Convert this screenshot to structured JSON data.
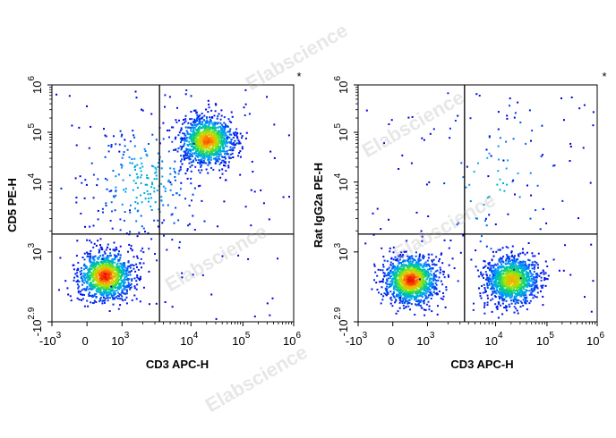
{
  "watermark": "Elabscience",
  "chart_data": [
    {
      "type": "scatter",
      "subtype": "flow-cytometry-density-dot-plot",
      "marker": "*",
      "xlabel": "CD3 APC-H",
      "ylabel": "CD5 PE-H",
      "x_scale": "biexponential",
      "y_scale": "biexponential",
      "xlim": [
        -1000,
        1000000
      ],
      "ylim": [
        -794,
        1000000
      ],
      "x_ticks": [
        {
          "base": "-10",
          "exp": "3",
          "value": -1000
        },
        {
          "base": "0",
          "exp": "",
          "value": 0
        },
        {
          "base": "10",
          "exp": "3",
          "value": 1000
        },
        {
          "base": "10",
          "exp": "4",
          "value": 10000
        },
        {
          "base": "10",
          "exp": "5",
          "value": 100000
        },
        {
          "base": "10",
          "exp": "6",
          "value": 1000000
        }
      ],
      "y_ticks": [
        {
          "base": "-10",
          "exp": "2.9",
          "value": -794
        },
        {
          "base": "10",
          "exp": "3",
          "value": 1000
        },
        {
          "base": "10",
          "exp": "4",
          "value": 10000
        },
        {
          "base": "10",
          "exp": "5",
          "value": 100000
        },
        {
          "base": "10",
          "exp": "6",
          "value": 1000000
        }
      ],
      "quadrant_gate": {
        "x": 3500,
        "y": 1800
      },
      "populations": [
        {
          "center": [
            500,
            400
          ],
          "spread": "dense",
          "relative_size": 0.45,
          "peak_density": "high"
        },
        {
          "center": [
            20000,
            70000
          ],
          "spread": "dense",
          "relative_size": 0.45,
          "peak_density": "medium-high"
        },
        {
          "center": [
            2000,
            10000
          ],
          "spread": "diffuse",
          "relative_size": 0.1,
          "peak_density": "low"
        }
      ],
      "grid": false,
      "legend": "none"
    },
    {
      "type": "scatter",
      "subtype": "flow-cytometry-density-dot-plot",
      "marker": "*",
      "xlabel": "CD3 APC-H",
      "ylabel": "Rat IgG2a PE-H",
      "x_scale": "biexponential",
      "y_scale": "biexponential",
      "xlim": [
        -1000,
        1000000
      ],
      "ylim": [
        -794,
        1000000
      ],
      "x_ticks": [
        {
          "base": "-10",
          "exp": "3",
          "value": -1000
        },
        {
          "base": "0",
          "exp": "",
          "value": 0
        },
        {
          "base": "10",
          "exp": "3",
          "value": 1000
        },
        {
          "base": "10",
          "exp": "4",
          "value": 10000
        },
        {
          "base": "10",
          "exp": "5",
          "value": 100000
        },
        {
          "base": "10",
          "exp": "6",
          "value": 1000000
        }
      ],
      "y_ticks": [
        {
          "base": "-10",
          "exp": "2.9",
          "value": -794
        },
        {
          "base": "10",
          "exp": "3",
          "value": 1000
        },
        {
          "base": "10",
          "exp": "4",
          "value": 10000
        },
        {
          "base": "10",
          "exp": "5",
          "value": 100000
        },
        {
          "base": "10",
          "exp": "6",
          "value": 1000000
        }
      ],
      "quadrant_gate": {
        "x": 3500,
        "y": 1800
      },
      "populations": [
        {
          "center": [
            500,
            300
          ],
          "spread": "dense",
          "relative_size": 0.5,
          "peak_density": "high"
        },
        {
          "center": [
            20000,
            300
          ],
          "spread": "dense",
          "relative_size": 0.47,
          "peak_density": "medium"
        },
        {
          "center": [
            10000,
            10000
          ],
          "spread": "sparse",
          "relative_size": 0.03,
          "peak_density": "low"
        }
      ],
      "grid": false,
      "legend": "none"
    }
  ]
}
